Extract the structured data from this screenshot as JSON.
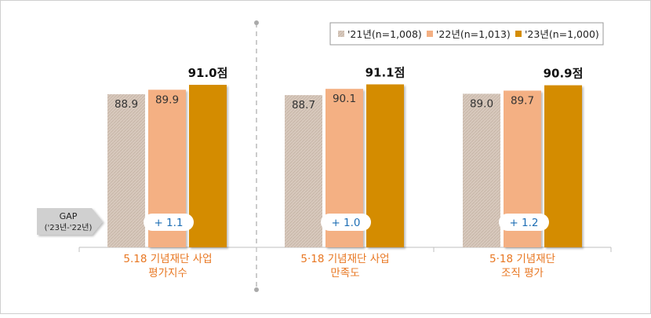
{
  "chart_data": {
    "type": "bar",
    "legend_position": "top-right",
    "series": [
      {
        "name": "'21년(n=1,008)",
        "color": "#d8c9bd",
        "values": [
          88.9,
          88.7,
          89.0
        ],
        "labels": [
          "88.9",
          "88.7",
          "89.0"
        ]
      },
      {
        "name": "'22년(n=1,013)",
        "color": "#f4b083",
        "values": [
          89.9,
          90.1,
          89.7
        ],
        "labels": [
          "89.9",
          "90.1",
          "89.7"
        ]
      },
      {
        "name": "'23년(n=1,000)",
        "color": "#d48c00",
        "values": [
          91.0,
          91.1,
          90.9
        ],
        "labels": [
          "91.0점",
          "91.1점",
          "90.9점"
        ]
      }
    ],
    "categories": [
      {
        "line1": "5.18 기념재단 사업",
        "line2": "평가지수"
      },
      {
        "line1": "5·18 기념재단 사업",
        "line2": "만족도"
      },
      {
        "line1": "5·18 기념재단",
        "line2": "조직 평가"
      }
    ],
    "gap": {
      "label_line1": "GAP",
      "label_line2": "('23년-'22년)",
      "values": [
        "+ 1.1",
        "+ 1.0",
        "+ 1.2"
      ]
    },
    "colors": {
      "category_text": "#e87722",
      "gap_text": "#1f6fb5",
      "axis": "#bfbfbf",
      "divider": "#aaaaaa"
    }
  }
}
